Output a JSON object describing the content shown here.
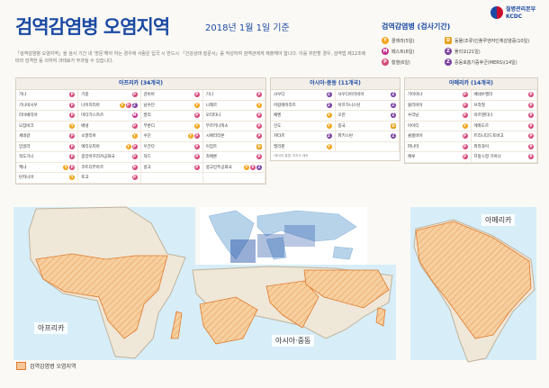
{
  "header": {
    "title": "검역감염병 오염지역",
    "date": "2018년 1월 1일 기준",
    "description": "「검역감염병 오염지역」을 검사 기간 내 '방문'해야 하는 경우에 사람은 입국 시 반드시 「건강상태 질문서」를 작성하여 검역관에게 제출해야 합니다. 이를 위반할 경우, 검역법 제12조에 따라 엄격한 등 의하여 과태료가 부과될 수 있습니다."
  },
  "logo": {
    "line1": "질병관리본부",
    "line2": "KCDC"
  },
  "legend": {
    "title": "검역감염병 (검사기간)",
    "items": [
      {
        "code": "Y",
        "label": "콜레라(5일)",
        "color": "#f2a51b",
        "cls": "b-y"
      },
      {
        "code": "D",
        "label": "동물(조류)인플루엔자인체감염증(10일)",
        "color": "#e8a21a",
        "cls": "b-d"
      },
      {
        "code": "M",
        "label": "페스트(6일)",
        "color": "#c2318e",
        "cls": "b-m"
      },
      {
        "code": "Z",
        "label": "폴리오(21일)",
        "color": "#7b3fa0",
        "cls": "b-z"
      },
      {
        "code": "P",
        "label": "황열(6일)",
        "color": "#d64b7a",
        "cls": "b-p"
      },
      {
        "code": "Z",
        "label": "중동호흡기증후군(MERS)(14일)",
        "color": "#7b3fa0",
        "cls": "b-z"
      }
    ]
  },
  "africa": {
    "header": "아프리카 (34개국)",
    "cells": [
      {
        "name": "가나",
        "b": [
          "b-p"
        ]
      },
      {
        "name": "기봉",
        "b": [
          "b-p"
        ]
      },
      {
        "name": "감비아",
        "b": [
          "b-p"
        ]
      },
      {
        "name": "기니",
        "b": [
          "b-p"
        ]
      },
      {
        "name": "기니비사우",
        "b": [
          "b-p"
        ]
      },
      {
        "name": "나이지리아",
        "b": [
          "b-y",
          "b-p",
          "b-z"
        ]
      },
      {
        "name": "남수단",
        "b": [
          "b-y"
        ]
      },
      {
        "name": "니제르",
        "b": [
          "b-y"
        ]
      },
      {
        "name": "라이베리아",
        "b": [
          "b-p"
        ]
      },
      {
        "name": "마다가스카르",
        "b": [
          "b-m"
        ]
      },
      {
        "name": "말리",
        "b": [
          "b-p"
        ]
      },
      {
        "name": "모리타니",
        "b": [
          "b-p"
        ]
      },
      {
        "name": "모잠비크",
        "b": [
          "b-y"
        ]
      },
      {
        "name": "베냉",
        "b": [
          "b-p"
        ]
      },
      {
        "name": "부룬디",
        "b": [
          "b-y"
        ]
      },
      {
        "name": "부르키나파소",
        "b": [
          "b-p"
        ]
      },
      {
        "name": "세네갈",
        "b": [
          "b-p"
        ]
      },
      {
        "name": "소말리아",
        "b": [
          "b-y"
        ]
      },
      {
        "name": "수단",
        "b": [
          "b-y",
          "b-p"
        ]
      },
      {
        "name": "시에라리온",
        "b": [
          "b-p"
        ]
      },
      {
        "name": "앙골라",
        "b": [
          "b-p"
        ]
      },
      {
        "name": "에티오피아",
        "b": [
          "b-y",
          "b-p"
        ]
      },
      {
        "name": "우간다",
        "b": [
          "b-p"
        ]
      },
      {
        "name": "이집트",
        "b": [
          "b-d"
        ]
      },
      {
        "name": "적도기니",
        "b": [
          "b-p"
        ]
      },
      {
        "name": "중앙아프리카공화국",
        "b": [
          "b-p"
        ]
      },
      {
        "name": "차드",
        "b": [
          "b-p"
        ]
      },
      {
        "name": "카메룬",
        "b": [
          "b-p"
        ]
      },
      {
        "name": "케냐",
        "b": [
          "b-y",
          "b-p"
        ]
      },
      {
        "name": "코트디부아르",
        "b": [
          "b-p"
        ]
      },
      {
        "name": "콩고",
        "b": [
          "b-p"
        ]
      },
      {
        "name": "콩고민주공화국",
        "b": [
          "b-y",
          "b-p",
          "b-z"
        ]
      },
      {
        "name": "탄자니아",
        "b": [
          "b-y"
        ]
      },
      {
        "name": "토고",
        "b": [
          "b-p"
        ]
      },
      {
        "name": "",
        "b": []
      },
      {
        "name": "",
        "b": []
      }
    ]
  },
  "asia": {
    "header": "아시아·중동 (11개국)",
    "cells": [
      {
        "name": "사우디",
        "b": [
          "b-z"
        ]
      },
      {
        "name": "사우디아라비아",
        "b": [
          "b-z"
        ]
      },
      {
        "name": "아랍에미리트",
        "b": [
          "b-z"
        ]
      },
      {
        "name": "아프가니스탄",
        "b": [
          "b-z"
        ]
      },
      {
        "name": "예멘",
        "b": [
          "b-y"
        ]
      },
      {
        "name": "오만",
        "b": [
          "b-z"
        ]
      },
      {
        "name": "인도",
        "b": [
          "b-y"
        ]
      },
      {
        "name": "중국",
        "b": [
          "b-d"
        ]
      },
      {
        "name": "카타르",
        "b": [
          "b-z"
        ]
      },
      {
        "name": "파키스탄",
        "b": [
          "b-z"
        ]
      },
      {
        "name": "필리핀",
        "b": [
          "b-y"
        ]
      },
      {
        "name": "",
        "b": []
      }
    ],
    "note": "*중국의 홍콩, 마카오 제외"
  },
  "america": {
    "header": "아메리카 (14개국)",
    "cells": [
      {
        "name": "가이아나",
        "b": [
          "b-p"
        ]
      },
      {
        "name": "베네수엘라",
        "b": [
          "b-p"
        ]
      },
      {
        "name": "볼리비아",
        "b": [
          "b-p"
        ]
      },
      {
        "name": "브라질",
        "b": [
          "b-p"
        ]
      },
      {
        "name": "수리남",
        "b": [
          "b-p"
        ]
      },
      {
        "name": "아르헨티나",
        "b": [
          "b-p"
        ]
      },
      {
        "name": "아이티",
        "b": [
          "b-y"
        ]
      },
      {
        "name": "에콰도르",
        "b": [
          "b-p"
        ]
      },
      {
        "name": "콜롬비아",
        "b": [
          "b-p"
        ]
      },
      {
        "name": "트리니다드토바고",
        "b": [
          "b-p"
        ]
      },
      {
        "name": "파나마",
        "b": [
          "b-p"
        ]
      },
      {
        "name": "파라과이",
        "b": [
          "b-p"
        ]
      },
      {
        "name": "페루",
        "b": [
          "b-p"
        ]
      },
      {
        "name": "프랑스령 기아나",
        "b": [
          "b-p"
        ]
      }
    ]
  },
  "maps": {
    "africa_label": "아프리카",
    "asia_label": "아시아·중동",
    "america_label": "아메리카",
    "legend_label": "검역감염병 오염지역"
  }
}
